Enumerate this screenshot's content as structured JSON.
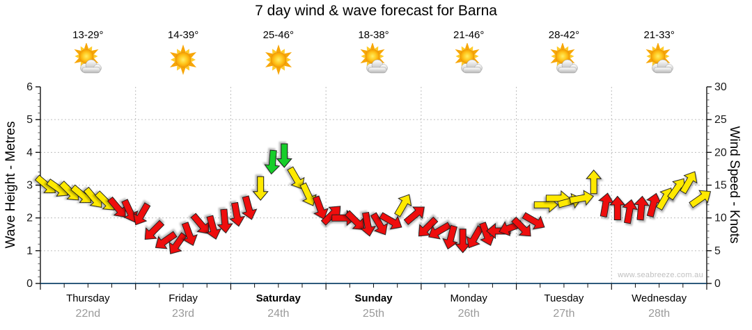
{
  "title": "7 day wind & wave forecast for Barna",
  "watermark": "www.seabreeze.com.au",
  "days": [
    {
      "name": "Thursday",
      "date": "22nd",
      "temp": "13-29°",
      "icon": "partly-cloudy",
      "bold": false
    },
    {
      "name": "Friday",
      "date": "23rd",
      "temp": "14-39°",
      "icon": "sunny",
      "bold": false
    },
    {
      "name": "Saturday",
      "date": "24th",
      "temp": "25-46°",
      "icon": "sunny",
      "bold": true
    },
    {
      "name": "Sunday",
      "date": "25th",
      "temp": "18-38°",
      "icon": "partly-cloudy",
      "bold": true
    },
    {
      "name": "Monday",
      "date": "26th",
      "temp": "21-46°",
      "icon": "partly-cloudy",
      "bold": false
    },
    {
      "name": "Tuesday",
      "date": "27th",
      "temp": "28-42°",
      "icon": "partly-cloudy",
      "bold": false
    },
    {
      "name": "Wednesday",
      "date": "28th",
      "temp": "21-33°",
      "icon": "partly-cloudy",
      "bold": false
    }
  ],
  "chart_data": {
    "type": "wind-arrow-timeseries",
    "title": "7 day wind & wave forecast for Barna",
    "left_axis": {
      "label": "Wave Height - Metres",
      "min": 0,
      "max": 6,
      "ticks": [
        0,
        1,
        2,
        3,
        4,
        5,
        6
      ]
    },
    "right_axis": {
      "label": "Wind Speed - Knots",
      "min": 0,
      "max": 30,
      "ticks": [
        0,
        5,
        10,
        15,
        20,
        25,
        30
      ]
    },
    "grid": {
      "horizontal_metres": [
        1,
        2,
        3,
        4,
        5
      ],
      "vertical_day_boundaries": true
    },
    "arrows_per_day": 8,
    "dir_convention": "degrees clockwise on screen, 0 = arrow pointing up",
    "colors": {
      "red": "#EE1111",
      "yellow": "#FFE900",
      "green": "#15CE2B"
    },
    "series": [
      {
        "day": "Thursday",
        "arrows": [
          {
            "kn": 15,
            "dir": 130,
            "c": "yellow"
          },
          {
            "kn": 14.5,
            "dir": 125,
            "c": "yellow"
          },
          {
            "kn": 14,
            "dir": 135,
            "c": "yellow"
          },
          {
            "kn": 13.5,
            "dir": 130,
            "c": "yellow"
          },
          {
            "kn": 13,
            "dir": 140,
            "c": "yellow"
          },
          {
            "kn": 12.5,
            "dir": 135,
            "c": "yellow"
          },
          {
            "kn": 11.5,
            "dir": 140,
            "c": "red"
          },
          {
            "kn": 11,
            "dir": 155,
            "c": "red"
          }
        ]
      },
      {
        "day": "Friday",
        "arrows": [
          {
            "kn": 10.5,
            "dir": 210,
            "c": "red"
          },
          {
            "kn": 8,
            "dir": 225,
            "c": "red"
          },
          {
            "kn": 6.5,
            "dir": 235,
            "c": "red"
          },
          {
            "kn": 6,
            "dir": 215,
            "c": "red"
          },
          {
            "kn": 7.5,
            "dir": 160,
            "c": "red"
          },
          {
            "kn": 9,
            "dir": 140,
            "c": "red"
          },
          {
            "kn": 8.5,
            "dir": 165,
            "c": "red"
          },
          {
            "kn": 9.5,
            "dir": 175,
            "c": "red"
          }
        ]
      },
      {
        "day": "Saturday",
        "arrows": [
          {
            "kn": 10.5,
            "dir": 170,
            "c": "red"
          },
          {
            "kn": 11.5,
            "dir": 165,
            "c": "red"
          },
          {
            "kn": 14.5,
            "dir": 180,
            "c": "yellow"
          },
          {
            "kn": 18.5,
            "dir": 185,
            "c": "green"
          },
          {
            "kn": 19.5,
            "dir": 180,
            "c": "green"
          },
          {
            "kn": 16,
            "dir": 150,
            "c": "yellow"
          },
          {
            "kn": 13.5,
            "dir": 155,
            "c": "yellow"
          },
          {
            "kn": 11.5,
            "dir": 160,
            "c": "red"
          }
        ]
      },
      {
        "day": "Sunday",
        "arrows": [
          {
            "kn": 10.5,
            "dir": 45,
            "c": "red"
          },
          {
            "kn": 10,
            "dir": 90,
            "c": "red"
          },
          {
            "kn": 9.5,
            "dir": 135,
            "c": "red"
          },
          {
            "kn": 9,
            "dir": 170,
            "c": "red"
          },
          {
            "kn": 9,
            "dir": 150,
            "c": "red"
          },
          {
            "kn": 9.5,
            "dir": 120,
            "c": "red"
          },
          {
            "kn": 12,
            "dir": 30,
            "c": "yellow"
          },
          {
            "kn": 10.5,
            "dir": 50,
            "c": "red"
          }
        ]
      },
      {
        "day": "Monday",
        "arrows": [
          {
            "kn": 8.5,
            "dir": 225,
            "c": "red"
          },
          {
            "kn": 8,
            "dir": 240,
            "c": "red"
          },
          {
            "kn": 7,
            "dir": 195,
            "c": "red"
          },
          {
            "kn": 6.5,
            "dir": 180,
            "c": "red"
          },
          {
            "kn": 7,
            "dir": 210,
            "c": "red"
          },
          {
            "kn": 7.5,
            "dir": 160,
            "c": "red"
          },
          {
            "kn": 8,
            "dir": 270,
            "c": "red"
          },
          {
            "kn": 8.5,
            "dir": 250,
            "c": "red"
          }
        ]
      },
      {
        "day": "Tuesday",
        "arrows": [
          {
            "kn": 8.5,
            "dir": 135,
            "c": "red"
          },
          {
            "kn": 9.5,
            "dir": 120,
            "c": "red"
          },
          {
            "kn": 12,
            "dir": 90,
            "c": "yellow"
          },
          {
            "kn": 13,
            "dir": 90,
            "c": "yellow"
          },
          {
            "kn": 12.5,
            "dir": 75,
            "c": "yellow"
          },
          {
            "kn": 13,
            "dir": 80,
            "c": "yellow"
          },
          {
            "kn": 15.5,
            "dir": 0,
            "c": "yellow"
          },
          {
            "kn": 12,
            "dir": 10,
            "c": "red"
          }
        ]
      },
      {
        "day": "Wednesday",
        "arrows": [
          {
            "kn": 11.5,
            "dir": 0,
            "c": "red"
          },
          {
            "kn": 11,
            "dir": 10,
            "c": "red"
          },
          {
            "kn": 11.5,
            "dir": 5,
            "c": "red"
          },
          {
            "kn": 12,
            "dir": 15,
            "c": "red"
          },
          {
            "kn": 13,
            "dir": 30,
            "c": "yellow"
          },
          {
            "kn": 14.5,
            "dir": 35,
            "c": "yellow"
          },
          {
            "kn": 15.5,
            "dir": 30,
            "c": "yellow"
          },
          {
            "kn": 13,
            "dir": 55,
            "c": "yellow"
          }
        ]
      }
    ]
  }
}
